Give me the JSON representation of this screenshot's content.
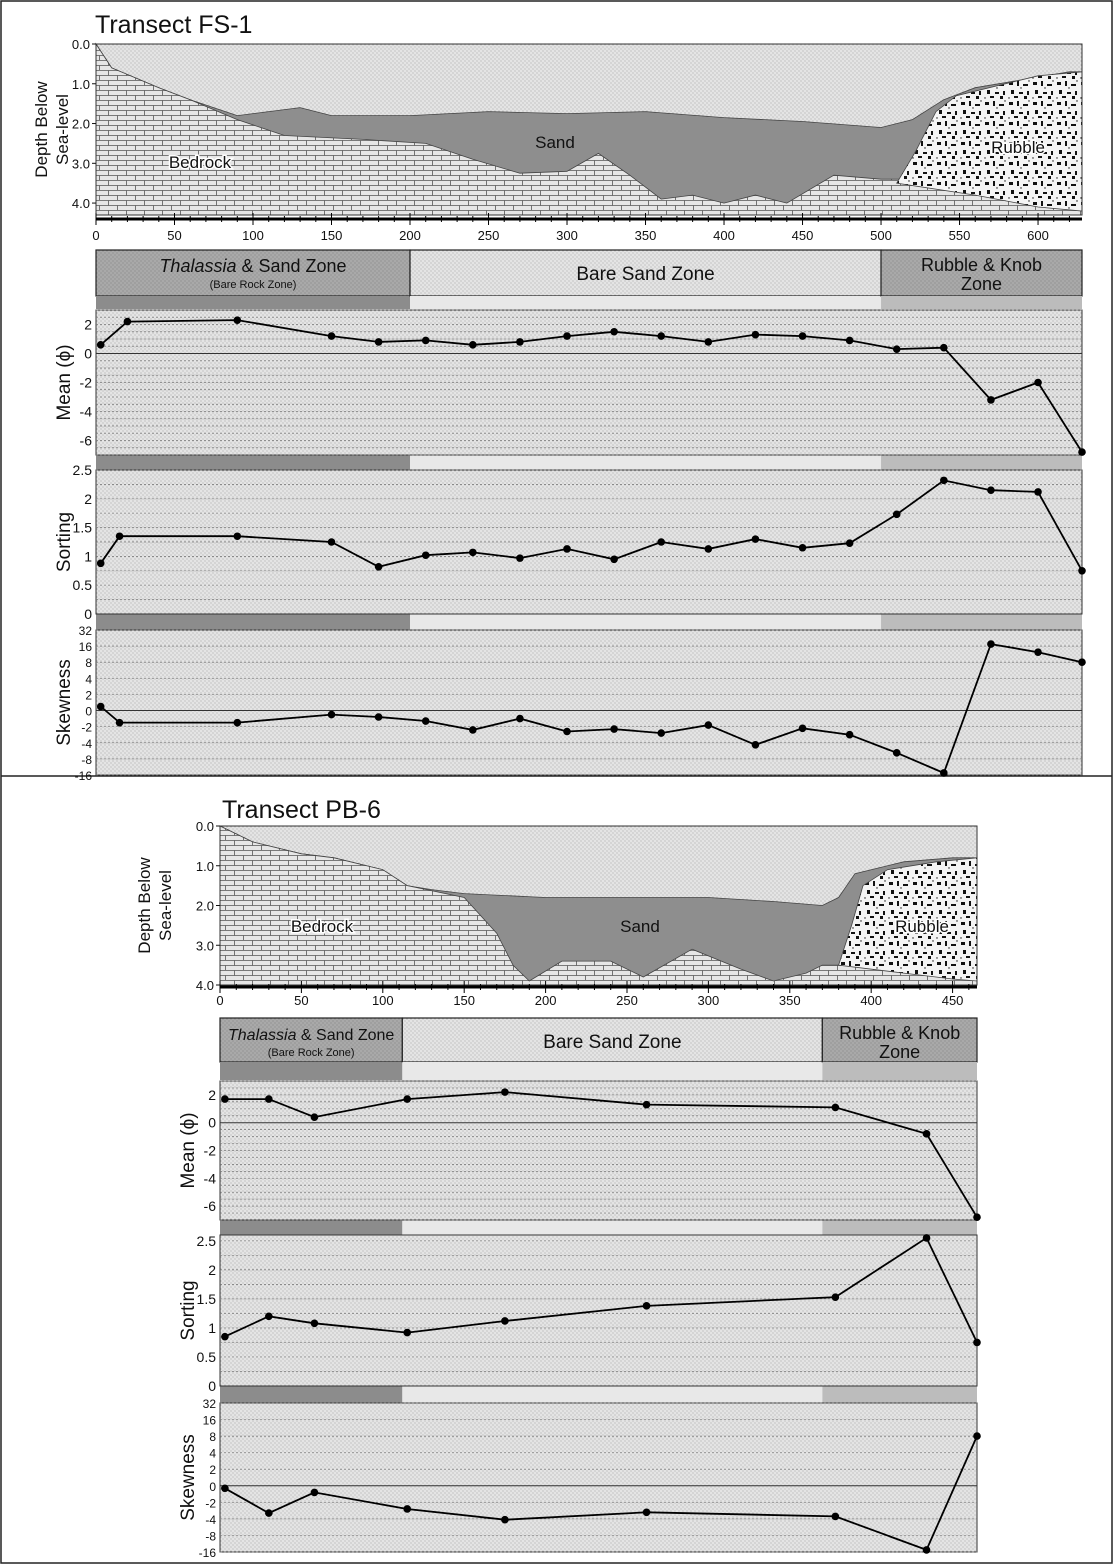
{
  "chart_data": [
    {
      "type": "line",
      "title": "Transect FS-1",
      "x_ticks": [
        0,
        50,
        100,
        150,
        200,
        250,
        300,
        350,
        400,
        450,
        500,
        550,
        600
      ],
      "profile": {
        "ylabel": [
          "Depth Below",
          "Sea-level"
        ],
        "ylim": [
          0,
          4.3
        ],
        "y_ticks": [
          "0.0",
          "1.0",
          "2.0",
          "3.0",
          "4.0"
        ],
        "labels": {
          "bedrock": "Bedrock",
          "sand": "Sand",
          "rubble": "Rubble"
        },
        "surface": [
          [
            0,
            0
          ],
          [
            10,
            0.6
          ],
          [
            40,
            1.1
          ],
          [
            60,
            1.4
          ],
          [
            90,
            1.8
          ],
          [
            110,
            1.7
          ],
          [
            130,
            1.6
          ],
          [
            150,
            1.8
          ],
          [
            200,
            1.8
          ],
          [
            250,
            1.7
          ],
          [
            300,
            1.75
          ],
          [
            350,
            1.7
          ],
          [
            400,
            1.85
          ],
          [
            450,
            1.95
          ],
          [
            500,
            2.1
          ],
          [
            520,
            1.9
          ],
          [
            540,
            1.4
          ],
          [
            560,
            1.1
          ],
          [
            590,
            0.9
          ],
          [
            620,
            0.7
          ],
          [
            628,
            0.7
          ]
        ],
        "bedrock_top": [
          [
            0,
            0
          ],
          [
            10,
            0.6
          ],
          [
            40,
            1.1
          ],
          [
            60,
            1.4
          ],
          [
            90,
            1.9
          ],
          [
            120,
            2.3
          ],
          [
            170,
            2.4
          ],
          [
            210,
            2.5
          ],
          [
            240,
            2.9
          ],
          [
            270,
            3.25
          ],
          [
            300,
            3.2
          ],
          [
            320,
            2.75
          ],
          [
            340,
            3.3
          ],
          [
            360,
            3.9
          ],
          [
            380,
            3.8
          ],
          [
            400,
            4.0
          ],
          [
            420,
            3.8
          ],
          [
            440,
            4.0
          ],
          [
            470,
            3.3
          ],
          [
            500,
            3.4
          ],
          [
            520,
            3.4
          ],
          [
            540,
            3.2
          ],
          [
            560,
            2.0
          ],
          [
            600,
            1.6
          ],
          [
            628,
            1.5
          ]
        ],
        "rubble_boundary": [
          [
            510,
            3.5
          ],
          [
            522,
            2.7
          ],
          [
            535,
            1.7
          ],
          [
            548,
            1.3
          ],
          [
            600,
            0.8
          ],
          [
            628,
            0.7
          ]
        ],
        "rubble_bottom": [
          [
            510,
            3.5
          ],
          [
            560,
            3.8
          ],
          [
            600,
            4.1
          ],
          [
            628,
            4.2
          ]
        ]
      },
      "zones": [
        {
          "label": "Thalassia & Sand Zone",
          "sublabel": "(Bare Rock Zone)",
          "range": [
            0,
            200
          ]
        },
        {
          "label": "Bare Sand Zone",
          "sublabel": "",
          "range": [
            200,
            500
          ]
        },
        {
          "label": "Rubble & Knob Zone",
          "sublabel": "",
          "range": [
            500,
            628
          ]
        }
      ],
      "series": [
        {
          "ylabel": "Mean (ϕ)",
          "ylim": [
            -7,
            3
          ],
          "ticks": [
            2,
            0,
            -2,
            -4,
            -6
          ],
          "x": [
            3,
            20,
            90,
            150,
            180,
            210,
            240,
            270,
            300,
            330,
            360,
            390,
            420,
            450,
            480,
            510,
            540,
            570,
            600,
            628
          ],
          "values": [
            0.6,
            2.2,
            2.3,
            1.2,
            0.8,
            0.9,
            0.6,
            0.8,
            1.2,
            1.5,
            1.2,
            0.8,
            1.3,
            1.2,
            0.9,
            0.3,
            0.4,
            -3.2,
            -2.0,
            -6.8
          ]
        },
        {
          "ylabel": "Sorting",
          "ylim": [
            0,
            2.5
          ],
          "ticks": [
            2.5,
            2,
            1.5,
            1,
            0.5,
            0
          ],
          "x": [
            3,
            15,
            90,
            150,
            180,
            210,
            240,
            270,
            300,
            330,
            360,
            390,
            420,
            450,
            480,
            510,
            540,
            570,
            600,
            628
          ],
          "values": [
            0.88,
            1.35,
            1.35,
            1.25,
            0.82,
            1.02,
            1.07,
            0.97,
            1.13,
            0.95,
            1.25,
            1.13,
            1.3,
            1.15,
            1.23,
            1.73,
            2.32,
            2.15,
            2.12,
            0.75
          ]
        },
        {
          "ylabel": "Skewness",
          "ylim": [
            -16,
            32
          ],
          "ticks": [
            32,
            16,
            8,
            4,
            2,
            0,
            -2,
            -4,
            -8,
            -16
          ],
          "x": [
            3,
            15,
            90,
            150,
            180,
            210,
            240,
            270,
            300,
            330,
            360,
            390,
            420,
            450,
            480,
            510,
            540,
            570,
            600,
            628
          ],
          "values": [
            0.5,
            -1.5,
            -1.5,
            -0.5,
            -0.8,
            -1.3,
            -2.4,
            -1.0,
            -2.6,
            -2.3,
            -2.8,
            -1.8,
            -4.5,
            -2.2,
            -3.0,
            -6.5,
            -15,
            18,
            13,
            8
          ]
        }
      ]
    },
    {
      "type": "line",
      "title": "Transect PB-6",
      "x_ticks": [
        0,
        50,
        100,
        150,
        200,
        250,
        300,
        350,
        400,
        450
      ],
      "profile": {
        "ylabel": [
          "Depth Below",
          "Sea-level"
        ],
        "ylim": [
          0,
          4.0
        ],
        "y_ticks": [
          "0.0",
          "1.0",
          "2.0",
          "3.0",
          "4.0"
        ],
        "labels": {
          "bedrock": "Bedrock",
          "sand": "Sand",
          "rubble": "Rubble"
        },
        "surface": [
          [
            0,
            0
          ],
          [
            20,
            0.4
          ],
          [
            50,
            0.7
          ],
          [
            70,
            0.8
          ],
          [
            100,
            1.1
          ],
          [
            115,
            1.5
          ],
          [
            130,
            1.6
          ],
          [
            150,
            1.7
          ],
          [
            200,
            1.8
          ],
          [
            250,
            1.8
          ],
          [
            300,
            1.8
          ],
          [
            340,
            1.9
          ],
          [
            370,
            2.0
          ],
          [
            380,
            1.8
          ],
          [
            390,
            1.2
          ],
          [
            420,
            0.9
          ],
          [
            450,
            0.8
          ],
          [
            465,
            0.8
          ]
        ],
        "bedrock_top": [
          [
            0,
            0
          ],
          [
            20,
            0.4
          ],
          [
            50,
            0.7
          ],
          [
            70,
            0.8
          ],
          [
            100,
            1.1
          ],
          [
            115,
            1.5
          ],
          [
            150,
            1.8
          ],
          [
            170,
            2.7
          ],
          [
            180,
            3.5
          ],
          [
            190,
            3.9
          ],
          [
            210,
            3.4
          ],
          [
            240,
            3.4
          ],
          [
            260,
            3.8
          ],
          [
            290,
            3.1
          ],
          [
            320,
            3.6
          ],
          [
            340,
            3.9
          ],
          [
            360,
            3.7
          ],
          [
            370,
            3.5
          ],
          [
            380,
            3.5
          ],
          [
            400,
            3.0
          ],
          [
            420,
            2.5
          ],
          [
            440,
            2.2
          ],
          [
            465,
            2.2
          ]
        ],
        "rubble_boundary": [
          [
            380,
            3.5
          ],
          [
            388,
            2.5
          ],
          [
            395,
            1.5
          ],
          [
            410,
            1.1
          ],
          [
            440,
            0.9
          ],
          [
            465,
            0.8
          ]
        ],
        "rubble_bottom": [
          [
            380,
            3.5
          ],
          [
            420,
            3.7
          ],
          [
            450,
            3.85
          ],
          [
            465,
            3.9
          ]
        ]
      },
      "zones": [
        {
          "label": "Thalassia & Sand Zone",
          "sublabel": "(Bare Rock Zone)",
          "range": [
            0,
            112
          ]
        },
        {
          "label": "Bare Sand Zone",
          "sublabel": "",
          "range": [
            112,
            370
          ]
        },
        {
          "label": "Rubble & Knob Zone",
          "sublabel": "",
          "range": [
            370,
            465
          ]
        }
      ],
      "series": [
        {
          "ylabel": "Mean (ϕ)",
          "ylim": [
            -7,
            3
          ],
          "ticks": [
            2,
            0,
            -2,
            -4,
            -6
          ],
          "x": [
            3,
            30,
            58,
            115,
            175,
            262,
            378,
            434,
            465
          ],
          "values": [
            1.7,
            1.7,
            0.4,
            1.7,
            2.2,
            1.3,
            1.1,
            -0.8,
            -6.8
          ]
        },
        {
          "ylabel": "Sorting",
          "ylim": [
            0,
            2.6
          ],
          "ticks": [
            2.5,
            2,
            1.5,
            1,
            0.5,
            0
          ],
          "x": [
            3,
            30,
            58,
            115,
            175,
            262,
            378,
            434,
            465
          ],
          "values": [
            0.85,
            1.2,
            1.08,
            0.92,
            1.12,
            1.38,
            1.53,
            2.55,
            0.75
          ]
        },
        {
          "ylabel": "Skewness",
          "ylim": [
            -16,
            32
          ],
          "ticks": [
            32,
            16,
            8,
            4,
            2,
            0,
            -2,
            -4,
            -8,
            -16
          ],
          "x": [
            3,
            30,
            58,
            115,
            175,
            262,
            378,
            434,
            465
          ],
          "values": [
            -0.3,
            -3.3,
            -0.8,
            -2.8,
            -4.2,
            -3.2,
            -3.7,
            -15,
            8
          ]
        }
      ]
    }
  ]
}
